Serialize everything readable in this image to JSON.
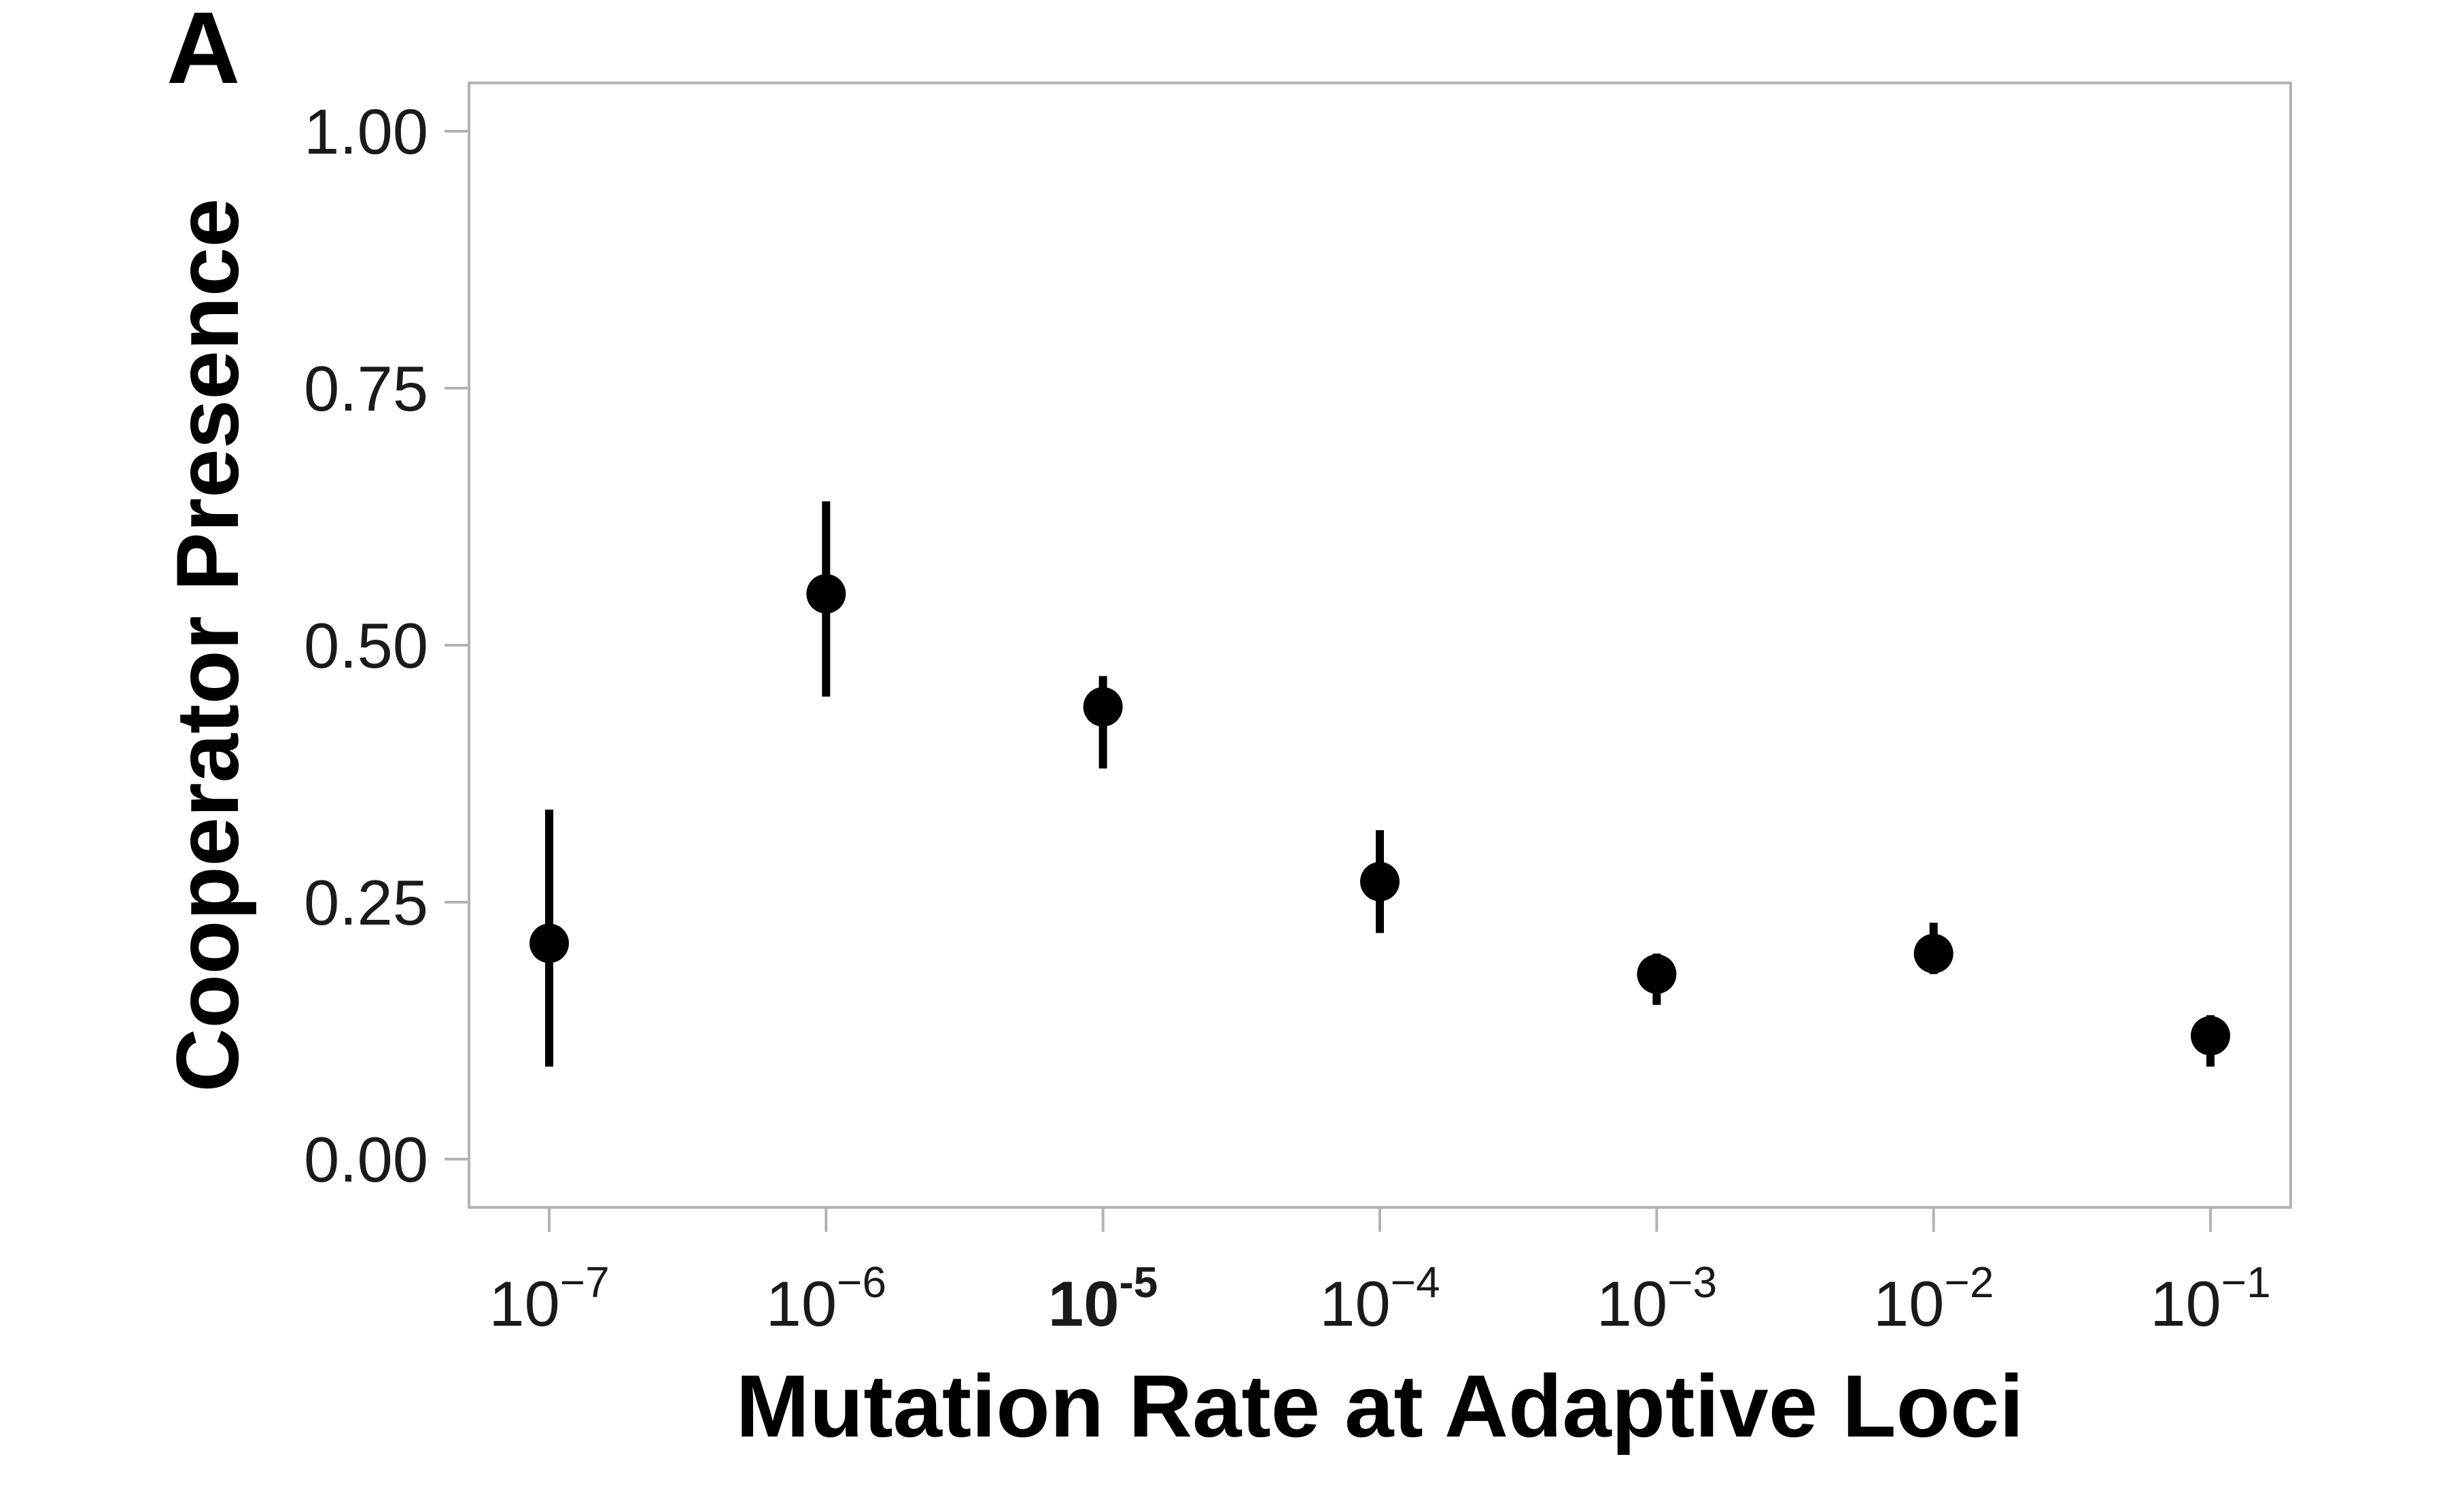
{
  "chart_data": {
    "type": "scatter",
    "panel_label": "A",
    "title": "",
    "xlabel": "Mutation Rate at Adaptive Loci",
    "ylabel": "Cooperator Presence",
    "x_scale": "log",
    "x_ticks": [
      {
        "base": "10",
        "exp": "−7",
        "bold": false
      },
      {
        "base": "10",
        "exp": "−6",
        "bold": false
      },
      {
        "base": "10",
        "exp": "-5",
        "bold": true
      },
      {
        "base": "10",
        "exp": "−4",
        "bold": false
      },
      {
        "base": "10",
        "exp": "−3",
        "bold": false
      },
      {
        "base": "10",
        "exp": "−2",
        "bold": false
      },
      {
        "base": "10",
        "exp": "−1",
        "bold": false
      }
    ],
    "y_ticks": [
      "0.00",
      "0.25",
      "0.50",
      "0.75",
      "1.00"
    ],
    "ylim": [
      -0.047,
      1.047
    ],
    "grid": false,
    "legend": "none",
    "marker_color": "#000000",
    "points": [
      {
        "x": 1e-07,
        "y": 0.21,
        "low": 0.09,
        "high": 0.34
      },
      {
        "x": 1e-06,
        "y": 0.55,
        "low": 0.45,
        "high": 0.64
      },
      {
        "x": 1e-05,
        "y": 0.44,
        "low": 0.38,
        "high": 0.47
      },
      {
        "x": 0.0001,
        "y": 0.27,
        "low": 0.22,
        "high": 0.32
      },
      {
        "x": 0.001,
        "y": 0.18,
        "low": 0.15,
        "high": 0.2
      },
      {
        "x": 0.01,
        "y": 0.2,
        "low": 0.18,
        "high": 0.23
      },
      {
        "x": 0.1,
        "y": 0.12,
        "low": 0.09,
        "high": 0.14
      }
    ]
  }
}
